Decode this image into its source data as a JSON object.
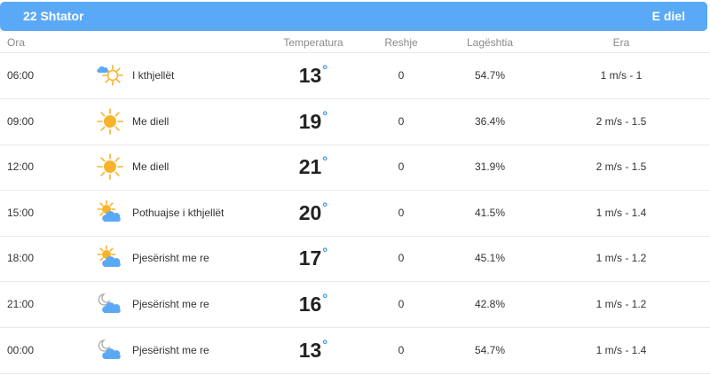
{
  "header": {
    "date": "22 Shtator",
    "day": "E diel"
  },
  "columns": {
    "time": "Ora",
    "temperature": "Temperatura",
    "precip": "Reshje",
    "humidity": "Lagështia",
    "wind": "Era"
  },
  "rows": [
    {
      "time": "06:00",
      "icon": "cloud-sun-icon",
      "desc": "I kthjellët",
      "temp": "13",
      "deg": "°",
      "precip": "0",
      "humidity": "54.7%",
      "wind": "1 m/s - 1"
    },
    {
      "time": "09:00",
      "icon": "sun-icon",
      "desc": "Me diell",
      "temp": "19",
      "deg": "°",
      "precip": "0",
      "humidity": "36.4%",
      "wind": "2 m/s - 1.5"
    },
    {
      "time": "12:00",
      "icon": "sun-icon",
      "desc": "Me diell",
      "temp": "21",
      "deg": "°",
      "precip": "0",
      "humidity": "31.9%",
      "wind": "2 m/s - 1.5"
    },
    {
      "time": "15:00",
      "icon": "partly-cloudy-icon",
      "desc": "Pothuajse i kthjellët",
      "temp": "20",
      "deg": "°",
      "precip": "0",
      "humidity": "41.5%",
      "wind": "1 m/s - 1.4"
    },
    {
      "time": "18:00",
      "icon": "partly-cloudy-icon",
      "desc": "Pjesërisht me re",
      "temp": "17",
      "deg": "°",
      "precip": "0",
      "humidity": "45.1%",
      "wind": "1 m/s - 1.2"
    },
    {
      "time": "21:00",
      "icon": "moon-cloud-icon",
      "desc": "Pjesërisht me re",
      "temp": "16",
      "deg": "°",
      "precip": "0",
      "humidity": "42.8%",
      "wind": "1 m/s - 1.2"
    },
    {
      "time": "00:00",
      "icon": "moon-cloud-icon",
      "desc": "Pjesërisht me re",
      "temp": "13",
      "deg": "°",
      "precip": "0",
      "humidity": "54.7%",
      "wind": "1 m/s - 1.4"
    }
  ],
  "colors": {
    "header_bg": "#5aa9f7",
    "degree": "#3b8fe8",
    "sun": "#f7b32b",
    "cloud": "#5aa9f7"
  }
}
